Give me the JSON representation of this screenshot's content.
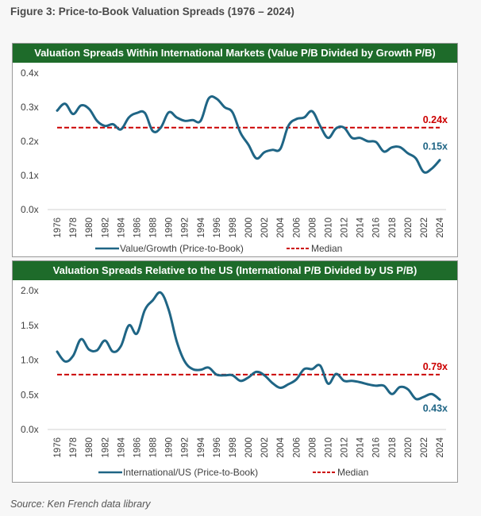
{
  "figure_title": "Figure 3: Price-to-Book Valuation Spreads (1976 – 2024)",
  "source": "Source: Ken French data library",
  "colors": {
    "line": "#1f6585",
    "median": "#cc0000",
    "header": "#1e6b2a"
  },
  "chart_data": [
    {
      "type": "line",
      "title": "Valuation Spreads Within International Markets (Value P/B Divided by Growth P/B)",
      "xlabel": "",
      "ylabel": "",
      "ylim": [
        0,
        0.4
      ],
      "yticks": [
        "0.0x",
        "0.1x",
        "0.2x",
        "0.3x",
        "0.4x"
      ],
      "ytick_values": [
        0,
        0.1,
        0.2,
        0.3,
        0.4
      ],
      "x": [
        1976,
        1977,
        1978,
        1979,
        1980,
        1981,
        1982,
        1983,
        1984,
        1985,
        1986,
        1987,
        1988,
        1989,
        1990,
        1991,
        1992,
        1993,
        1994,
        1995,
        1996,
        1997,
        1998,
        1999,
        2000,
        2001,
        2002,
        2003,
        2004,
        2005,
        2006,
        2007,
        2008,
        2009,
        2010,
        2011,
        2012,
        2013,
        2014,
        2015,
        2016,
        2017,
        2018,
        2019,
        2020,
        2021,
        2022,
        2023,
        2024
      ],
      "xtick_labels": [
        "1976",
        "1978",
        "1980",
        "1982",
        "1984",
        "1986",
        "1988",
        "1990",
        "1992",
        "1994",
        "1996",
        "1998",
        "2000",
        "2002",
        "2004",
        "2006",
        "2008",
        "2010",
        "2012",
        "2014",
        "2016",
        "2018",
        "2020",
        "2022",
        "2024"
      ],
      "series": [
        {
          "name": "Value/Growth (Price-to-Book)",
          "values": [
            0.29,
            0.31,
            0.28,
            0.305,
            0.295,
            0.26,
            0.245,
            0.25,
            0.235,
            0.27,
            0.283,
            0.283,
            0.23,
            0.24,
            0.285,
            0.27,
            0.26,
            0.262,
            0.26,
            0.325,
            0.325,
            0.3,
            0.285,
            0.225,
            0.19,
            0.15,
            0.168,
            0.175,
            0.178,
            0.245,
            0.265,
            0.27,
            0.288,
            0.245,
            0.21,
            0.238,
            0.24,
            0.21,
            0.21,
            0.2,
            0.198,
            0.17,
            0.182,
            0.183,
            0.165,
            0.15,
            0.11,
            0.12,
            0.145
          ]
        },
        {
          "name": "Median",
          "value": 0.24
        }
      ],
      "annotations": {
        "median_label": "0.24x",
        "last_label": "0.15x"
      },
      "legend": {
        "position": "bottom",
        "line_label": "Value/Growth (Price-to-Book)",
        "median_label": "Median"
      },
      "grid": false
    },
    {
      "type": "line",
      "title": "Valuation Spreads Relative to the US (International P/B Divided by US P/B)",
      "xlabel": "",
      "ylabel": "",
      "ylim": [
        0,
        2.0
      ],
      "yticks": [
        "0.0x",
        "0.5x",
        "1.0x",
        "1.5x",
        "2.0x"
      ],
      "ytick_values": [
        0,
        0.5,
        1.0,
        1.5,
        2.0
      ],
      "x": [
        1976,
        1977,
        1978,
        1979,
        1980,
        1981,
        1982,
        1983,
        1984,
        1985,
        1986,
        1987,
        1988,
        1989,
        1990,
        1991,
        1992,
        1993,
        1994,
        1995,
        1996,
        1997,
        1998,
        1999,
        2000,
        2001,
        2002,
        2003,
        2004,
        2005,
        2006,
        2007,
        2008,
        2009,
        2010,
        2011,
        2012,
        2013,
        2014,
        2015,
        2016,
        2017,
        2018,
        2019,
        2020,
        2021,
        2022,
        2023,
        2024
      ],
      "xtick_labels": [
        "1976",
        "1978",
        "1980",
        "1982",
        "1984",
        "1986",
        "1988",
        "1990",
        "1992",
        "1994",
        "1996",
        "1998",
        "2000",
        "2002",
        "2004",
        "2006",
        "2008",
        "2010",
        "2012",
        "2014",
        "2016",
        "2018",
        "2020",
        "2022",
        "2024"
      ],
      "series": [
        {
          "name": "International/US (Price-to-Book)",
          "values": [
            1.12,
            0.98,
            1.06,
            1.3,
            1.15,
            1.14,
            1.28,
            1.12,
            1.2,
            1.5,
            1.38,
            1.72,
            1.86,
            1.97,
            1.72,
            1.27,
            0.98,
            0.87,
            0.86,
            0.89,
            0.79,
            0.78,
            0.78,
            0.7,
            0.75,
            0.83,
            0.78,
            0.67,
            0.6,
            0.65,
            0.72,
            0.87,
            0.87,
            0.92,
            0.66,
            0.8,
            0.7,
            0.7,
            0.68,
            0.65,
            0.63,
            0.63,
            0.51,
            0.61,
            0.58,
            0.44,
            0.47,
            0.51,
            0.43
          ]
        },
        {
          "name": "Median",
          "value": 0.79
        }
      ],
      "annotations": {
        "median_label": "0.79x",
        "last_label": "0.43x"
      },
      "legend": {
        "position": "bottom",
        "line_label": "International/US (Price-to-Book)",
        "median_label": "Median"
      },
      "grid": false
    }
  ]
}
